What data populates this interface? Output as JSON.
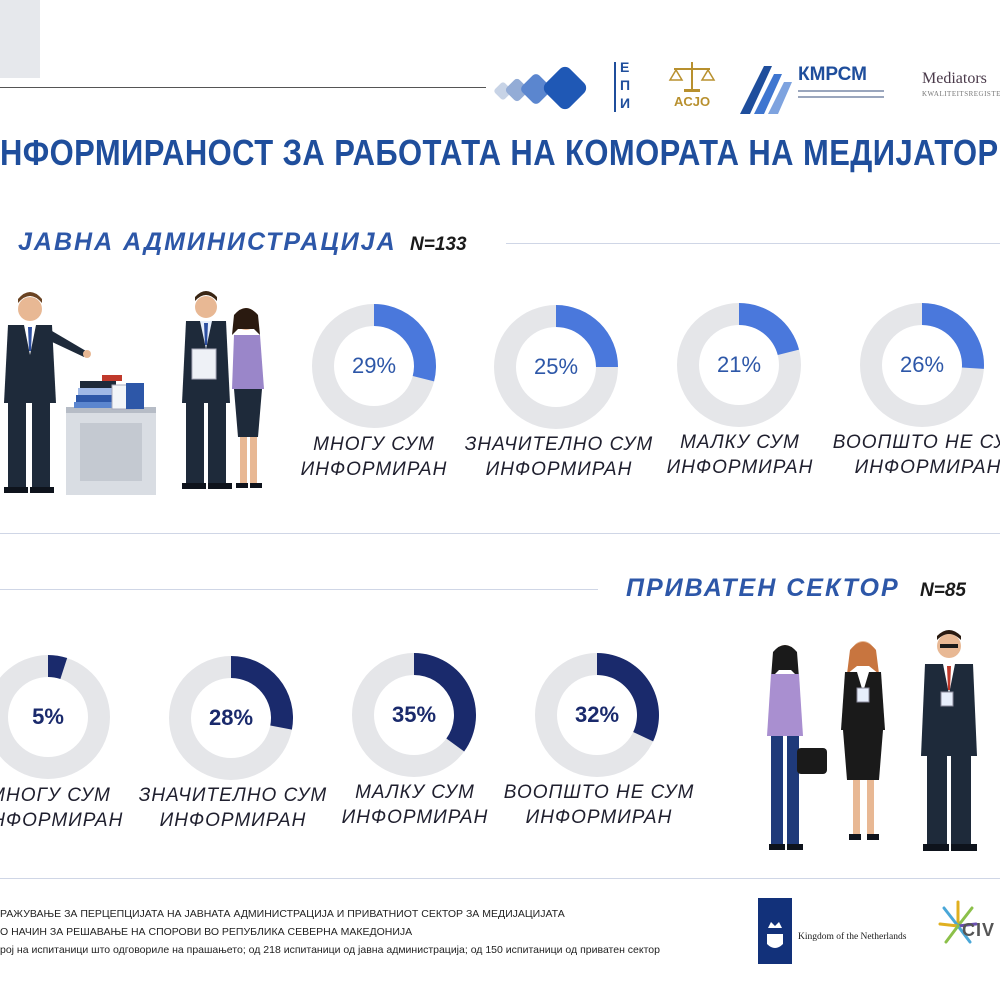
{
  "header": {
    "epi_logo": "ЕПИ",
    "asjo_logo": "ACJO",
    "kmrsm_logo": "КМРСМ",
    "mediators_logo": "Mediators",
    "mediators_sub": "KWALITEITSREGISTER"
  },
  "title": "НФОРМИРАНОСТ ЗА РАБОТАТА НА КОМОРАТА НА МЕДИЈАТОРИ",
  "colors": {
    "public_accent": "#4a78dc",
    "private_accent": "#1a2a6c",
    "track": "#e5e6e9",
    "title": "#1f4e9c"
  },
  "chart_data": [
    {
      "type": "pie",
      "variant": "donut",
      "title": "ЈАВНА АДМИНИСТРАЦИЈА",
      "n_label": "N=133",
      "categories": [
        [
          "МНОГУ СУМ",
          "ИНФОРМИРАН"
        ],
        [
          "ЗНАЧИТЕЛНО СУМ",
          "ИНФОРМИРАН"
        ],
        [
          "МАЛКУ СУМ",
          "ИНФОРМИРАН"
        ],
        [
          "ВООПШТО НЕ СУМ",
          "ИНФОРМИРАН"
        ]
      ],
      "values": [
        29,
        25,
        21,
        26
      ],
      "value_labels": [
        "29%",
        "25%",
        "21%",
        "26%"
      ]
    },
    {
      "type": "pie",
      "variant": "donut",
      "title": "ПРИВАТЕН СЕКТОР",
      "n_label": "N=85",
      "categories": [
        [
          "МНОГУ СУМ",
          "ИНФОРМИРАН"
        ],
        [
          "ЗНАЧИТЕЛНО СУМ",
          "ИНФОРМИРАН"
        ],
        [
          "МАЛКУ СУМ",
          "ИНФОРМИРАН"
        ],
        [
          "ВООПШТО НЕ СУМ",
          "ИНФОРМИРАН"
        ]
      ],
      "values": [
        5,
        28,
        35,
        32
      ],
      "value_labels": [
        "5%",
        "28%",
        "35%",
        "32%"
      ]
    }
  ],
  "footer": {
    "lines": [
      "РАЖУВАЊЕ ЗА ПЕРЦЕПЦИЈАТА НА ЈАВНАТА АДМИНИСТРАЦИЈА И ПРИВАТНИОТ СЕКТОР ЗА МЕДИЈАЦИЈАТА",
      "О НАЧИН ЗА РЕШАВАЊЕ НА СПОРОВИ ВО РЕПУБЛИКА СЕВЕРНА МАКЕДОНИЈА",
      "рој на испитаници што одговориле на прашањето; од 218 испитаници од јавна администрација; од 150 испитаници од приватен сектор"
    ],
    "netherlands": "Kingdom of the Netherlands",
    "civica": "CIV"
  }
}
